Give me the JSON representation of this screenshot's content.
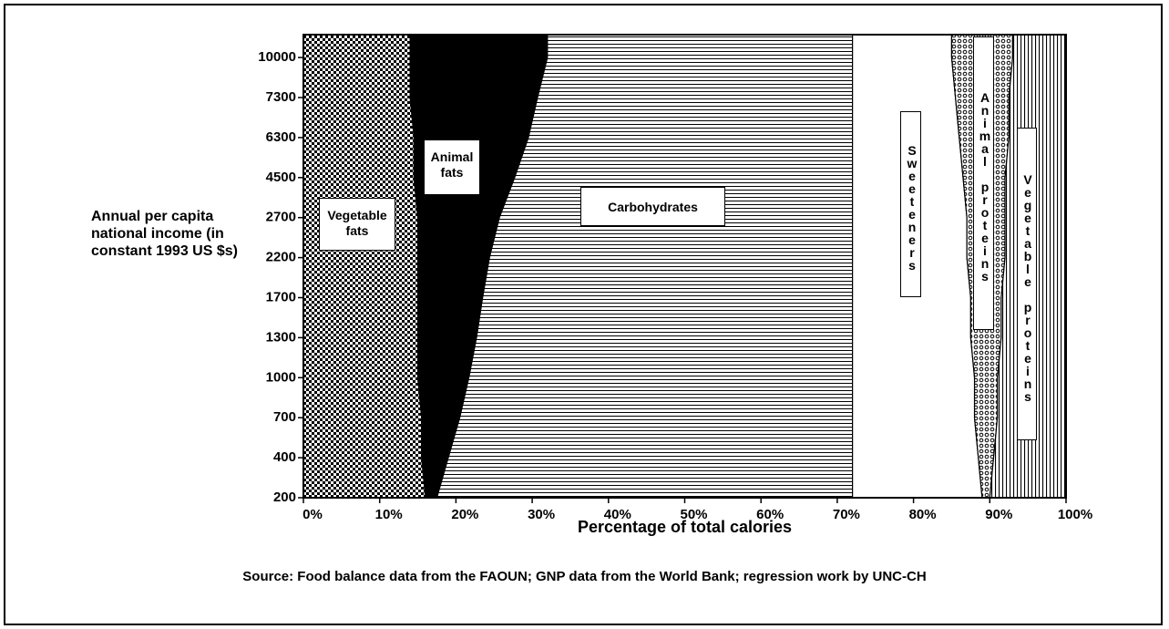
{
  "chart_data": {
    "type": "stacked_area_horizontal",
    "x_label": "Percentage of total calories",
    "y_label": "Annual per capita national income (in constant 1993 US $s)",
    "source": "Source: Food balance data from the FAOUN; GNP data from the World Bank; regression work by UNC-CH",
    "categories": [
      "200",
      "400",
      "700",
      "1000",
      "1300",
      "1700",
      "2200",
      "2700",
      "4500",
      "6300",
      "7300",
      "10000"
    ],
    "xlim": [
      0,
      100
    ],
    "xticks": [
      {
        "value": 0,
        "label": "0%"
      },
      {
        "value": 10,
        "label": "10%"
      },
      {
        "value": 20,
        "label": "20%"
      },
      {
        "value": 30,
        "label": "30%"
      },
      {
        "value": 40,
        "label": "40%"
      },
      {
        "value": 50,
        "label": "50%"
      },
      {
        "value": 60,
        "label": "60%"
      },
      {
        "value": 70,
        "label": "70%"
      },
      {
        "value": 80,
        "label": "80%"
      },
      {
        "value": 90,
        "label": "90%"
      },
      {
        "value": 100,
        "label": "100%"
      }
    ],
    "series": [
      {
        "name": "Vegetable fats",
        "color": "#000000",
        "pattern": "checker",
        "values": [
          16,
          15.5,
          15.5,
          15,
          15,
          15,
          15,
          15,
          14.5,
          14.5,
          14,
          14
        ]
      },
      {
        "name": "Animal fats",
        "color": "#000000",
        "pattern": "solid",
        "values": [
          1.5,
          3.5,
          5,
          6.7,
          7.7,
          8.5,
          9.4,
          10.7,
          13.2,
          15,
          16.7,
          18
        ]
      },
      {
        "name": "Carbohydrates",
        "color": "#000000",
        "pattern": "hlines",
        "values": [
          54.5,
          53,
          51.5,
          50.3,
          49.3,
          48.5,
          47.6,
          46.3,
          44.3,
          42.5,
          41.3,
          40
        ]
      },
      {
        "name": "Sweeteners",
        "color": "#ffffff",
        "pattern": "solid",
        "values": [
          17,
          16.5,
          16,
          16,
          15.5,
          15.5,
          15,
          15,
          14.5,
          14,
          13.5,
          13
        ]
      },
      {
        "name": "Animal proteins",
        "color": "#000000",
        "pattern": "circles",
        "values": [
          1,
          2,
          3,
          3,
          4,
          4,
          5,
          5,
          5.5,
          6.5,
          7,
          8
        ]
      },
      {
        "name": "Vegetable proteins",
        "color": "#000000",
        "pattern": "vlines",
        "values": [
          10,
          9.5,
          9,
          9,
          8.5,
          8.5,
          8,
          8,
          8,
          7.5,
          7.5,
          7
        ]
      }
    ]
  }
}
